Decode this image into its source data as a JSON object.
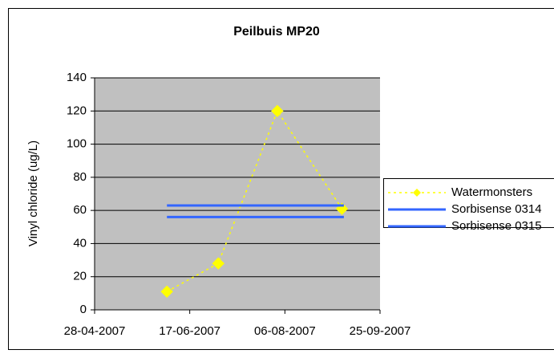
{
  "chart_data": {
    "type": "line",
    "title": "Peilbuis MP20",
    "y_label": "Vinyl chloride (ug/L)",
    "xlim": [
      "28-04-2007",
      "25-09-2007"
    ],
    "xticks": [
      "28-04-2007",
      "17-06-2007",
      "06-08-2007",
      "25-09-2007"
    ],
    "ylim": [
      0,
      140
    ],
    "yticks": [
      0,
      20,
      40,
      60,
      80,
      100,
      120,
      140
    ],
    "grid": true,
    "legend": "right",
    "series": [
      {
        "name": "Watermonsters",
        "color": "#ffff00",
        "style": "dotted",
        "marker": "diamond",
        "x": [
          "05-06-2007",
          "02-07-2007",
          "02-08-2007",
          "05-09-2007"
        ],
        "values": [
          11,
          28,
          120,
          61
        ]
      },
      {
        "name": "Sorbisense 0314",
        "color": "#3366ff",
        "style": "solid",
        "x": [
          "05-06-2007",
          "06-09-2007"
        ],
        "values": [
          63,
          63
        ]
      },
      {
        "name": "Sorbisense 0315",
        "color": "#3366ff",
        "style": "solid",
        "x": [
          "05-06-2007",
          "06-09-2007"
        ],
        "values": [
          56,
          56
        ]
      }
    ]
  }
}
